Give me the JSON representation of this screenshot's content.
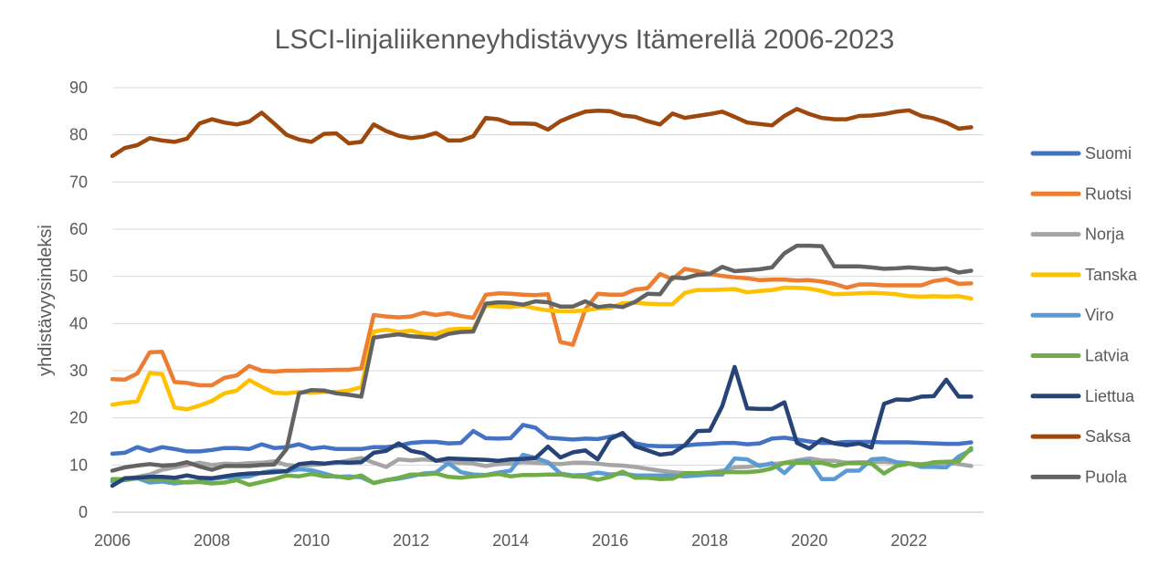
{
  "chart_data": {
    "type": "line",
    "title": "LSCI-linjaliikenneyhdistävyys Itämerellä 2006-2023",
    "xlabel": "",
    "ylabel": "yhdistävyysindeksi",
    "xlim": [
      2006,
      2023.5
    ],
    "ylim": [
      0,
      90
    ],
    "x_ticks": [
      2006,
      2008,
      2010,
      2012,
      2014,
      2016,
      2018,
      2020,
      2022
    ],
    "y_ticks": [
      0,
      10,
      20,
      30,
      40,
      50,
      60,
      70,
      80,
      90
    ],
    "grid": "horizontal",
    "legend_position": "right",
    "x_start": 2006,
    "x_step": 0.25,
    "series": [
      {
        "name": "Suomi",
        "color": "#4472C4",
        "values": [
          12.4,
          12.6,
          13.8,
          13.0,
          13.8,
          13.4,
          12.9,
          12.9,
          13.2,
          13.6,
          13.6,
          13.4,
          14.4,
          13.6,
          13.8,
          14.4,
          13.5,
          13.8,
          13.4,
          13.4,
          13.4,
          13.8,
          13.8,
          14.1,
          14.7,
          14.9,
          14.9,
          14.6,
          14.7,
          17.2,
          15.7,
          15.6,
          15.7,
          18.5,
          17.9,
          15.8,
          15.6,
          15.4,
          15.6,
          15.5,
          16.0,
          16.5,
          14.6,
          14.1,
          14.0,
          14.0,
          14.1,
          14.4,
          14.5,
          14.7,
          14.7,
          14.4,
          14.6,
          15.6,
          15.8,
          15.4,
          15.0,
          14.7,
          14.7,
          14.9,
          14.9,
          14.9,
          14.8,
          14.8,
          14.8,
          14.7,
          14.6,
          14.5,
          14.5,
          14.8
        ]
      },
      {
        "name": "Ruotsi",
        "color": "#ED7D31",
        "values": [
          28.2,
          28.1,
          29.4,
          33.9,
          34.0,
          27.6,
          27.4,
          26.9,
          26.9,
          28.5,
          29.0,
          31.0,
          30.0,
          29.8,
          30.0,
          30.0,
          30.1,
          30.1,
          30.2,
          30.2,
          30.5,
          41.8,
          41.5,
          41.3,
          41.5,
          42.3,
          41.8,
          42.2,
          41.6,
          41.2,
          46.1,
          46.4,
          46.3,
          46.1,
          46.0,
          46.2,
          36.1,
          35.5,
          43.0,
          46.3,
          46.1,
          46.1,
          47.2,
          47.5,
          50.5,
          49.4,
          51.6,
          51.1,
          50.5,
          50.1,
          49.8,
          49.6,
          49.2,
          49.3,
          49.3,
          49.1,
          49.2,
          48.9,
          48.4,
          47.6,
          48.3,
          48.3,
          48.1,
          48.1,
          48.1,
          48.1,
          49.0,
          49.4,
          48.4,
          48.5
        ]
      },
      {
        "name": "Norja",
        "color": "#A5A5A5",
        "values": [
          6.5,
          7.0,
          7.5,
          8.0,
          9.0,
          9.5,
          10.0,
          10.5,
          10.0,
          10.3,
          10.2,
          10.4,
          10.5,
          10.8,
          10.0,
          9.8,
          10.0,
          10.2,
          10.5,
          11.0,
          11.5,
          10.5,
          9.6,
          11.2,
          11.0,
          11.2,
          11.0,
          10.6,
          10.5,
          10.3,
          9.8,
          10.2,
          10.3,
          10.6,
          10.5,
          10.3,
          10.2,
          10.5,
          10.5,
          10.3,
          10.0,
          9.9,
          9.6,
          9.2,
          8.8,
          8.5,
          8.3,
          8.2,
          8.5,
          8.8,
          9.5,
          9.6,
          10.0,
          10.2,
          10.5,
          11.0,
          11.4,
          11.0,
          10.9,
          10.5,
          10.6,
          10.6,
          10.7,
          10.5,
          10.3,
          10.2,
          10.4,
          10.5,
          10.2,
          9.8
        ]
      },
      {
        "name": "Tanska",
        "color": "#FFC000",
        "values": [
          22.8,
          23.2,
          23.5,
          29.5,
          29.3,
          22.2,
          21.8,
          22.6,
          23.6,
          25.2,
          25.8,
          28.0,
          26.6,
          25.3,
          25.2,
          25.5,
          25.3,
          25.5,
          25.5,
          25.8,
          26.5,
          38.3,
          38.7,
          38.2,
          38.5,
          37.8,
          37.8,
          38.7,
          38.9,
          38.8,
          43.8,
          43.6,
          43.5,
          43.8,
          43.2,
          42.8,
          42.6,
          42.6,
          42.8,
          43.2,
          43.3,
          44.3,
          44.4,
          44.2,
          44.1,
          44.1,
          46.5,
          47.1,
          47.1,
          47.2,
          47.3,
          46.6,
          46.9,
          47.1,
          47.6,
          47.6,
          47.4,
          46.9,
          46.2,
          46.3,
          46.4,
          46.5,
          46.4,
          46.2,
          45.8,
          45.7,
          45.8,
          45.7,
          45.8,
          45.3
        ]
      },
      {
        "name": "Viro",
        "color": "#5B9BD5",
        "values": [
          6.5,
          6.8,
          7.2,
          6.3,
          6.5,
          6.1,
          6.4,
          6.5,
          7.0,
          7.4,
          7.4,
          7.6,
          8.4,
          8.8,
          8.7,
          9.1,
          8.9,
          8.2,
          7.5,
          7.6,
          7.4,
          6.2,
          6.8,
          7.1,
          7.6,
          8.2,
          8.4,
          10.4,
          8.5,
          8.0,
          7.9,
          8.4,
          8.8,
          12.2,
          11.5,
          10.6,
          8.2,
          7.8,
          7.9,
          8.4,
          8.0,
          8.2,
          7.8,
          7.8,
          7.8,
          7.8,
          7.6,
          7.8,
          8.0,
          8.0,
          11.4,
          11.2,
          9.8,
          10.4,
          8.3,
          10.8,
          10.9,
          7.0,
          7.0,
          8.8,
          8.8,
          11.2,
          11.4,
          10.6,
          10.4,
          9.6,
          9.6,
          9.5,
          11.8,
          13.2
        ]
      },
      {
        "name": "Latvia",
        "color": "#70AD47",
        "values": [
          7.0,
          7.0,
          7.2,
          7.0,
          6.9,
          6.6,
          6.3,
          6.4,
          6.1,
          6.3,
          6.8,
          5.8,
          6.4,
          7.0,
          7.8,
          7.6,
          8.1,
          7.6,
          7.6,
          7.2,
          7.8,
          6.2,
          6.8,
          7.3,
          8.0,
          8.0,
          8.2,
          7.5,
          7.3,
          7.6,
          7.8,
          8.1,
          7.6,
          7.9,
          7.9,
          8.0,
          8.0,
          7.6,
          7.5,
          6.9,
          7.5,
          8.6,
          7.3,
          7.3,
          7.0,
          7.1,
          8.3,
          8.3,
          8.4,
          8.5,
          8.5,
          8.5,
          8.7,
          9.3,
          10.5,
          10.5,
          10.5,
          10.5,
          9.8,
          10.4,
          10.4,
          10.3,
          8.2,
          9.8,
          10.3,
          10.0,
          10.6,
          10.7,
          10.8,
          13.6
        ]
      },
      {
        "name": "Liettua",
        "color": "#264478",
        "values": [
          5.6,
          7.2,
          7.3,
          7.5,
          7.5,
          7.3,
          7.8,
          7.3,
          7.2,
          7.6,
          8.0,
          8.2,
          8.3,
          8.5,
          8.7,
          10.2,
          10.5,
          10.3,
          10.6,
          10.5,
          10.6,
          12.6,
          13.0,
          14.6,
          13.0,
          12.5,
          10.9,
          11.4,
          11.3,
          11.2,
          11.1,
          10.9,
          11.2,
          11.3,
          11.5,
          13.9,
          11.6,
          12.7,
          13.1,
          11.2,
          15.5,
          16.8,
          14.0,
          13.1,
          12.2,
          12.5,
          14.2,
          17.2,
          17.3,
          22.5,
          30.8,
          22.0,
          21.9,
          21.9,
          23.3,
          14.7,
          13.5,
          15.5,
          14.6,
          14.2,
          14.6,
          13.7,
          23.0,
          23.9,
          23.8,
          24.5,
          24.6,
          28.1,
          24.5,
          24.5
        ]
      },
      {
        "name": "Saksa",
        "color": "#9E480E",
        "values": [
          75.5,
          77.2,
          77.8,
          79.3,
          78.8,
          78.5,
          79.2,
          82.4,
          83.3,
          82.6,
          82.2,
          82.8,
          84.7,
          82.4,
          80.0,
          79.0,
          78.5,
          80.2,
          80.3,
          78.2,
          78.5,
          82.2,
          80.8,
          79.8,
          79.3,
          79.6,
          80.4,
          78.8,
          78.8,
          79.7,
          83.6,
          83.3,
          82.4,
          82.4,
          82.3,
          81.1,
          82.9,
          84.0,
          84.9,
          85.1,
          85.0,
          84.1,
          83.8,
          82.9,
          82.2,
          84.5,
          83.6,
          84.0,
          84.4,
          84.9,
          83.8,
          82.6,
          82.3,
          82.0,
          84.0,
          85.5,
          84.4,
          83.6,
          83.3,
          83.3,
          84.0,
          84.1,
          84.4,
          84.9,
          85.2,
          84.0,
          83.5,
          82.6,
          81.3,
          81.6
        ]
      },
      {
        "name": "Puola",
        "color": "#636363",
        "values": [
          8.8,
          9.5,
          9.9,
          10.2,
          9.9,
          10.0,
          10.6,
          9.7,
          9.0,
          9.8,
          9.8,
          9.8,
          10.0,
          10.1,
          13.4,
          25.2,
          25.9,
          25.8,
          25.2,
          24.9,
          24.5,
          37.0,
          37.4,
          37.7,
          37.3,
          37.1,
          36.8,
          37.8,
          38.2,
          38.3,
          44.2,
          44.5,
          44.4,
          44.0,
          44.7,
          44.5,
          43.6,
          43.6,
          44.7,
          43.5,
          43.8,
          43.5,
          44.6,
          46.3,
          46.2,
          49.8,
          49.6,
          50.3,
          50.5,
          52.0,
          51.1,
          51.3,
          51.5,
          51.9,
          54.9,
          56.5,
          56.5,
          56.4,
          52.1,
          52.1,
          52.1,
          51.9,
          51.6,
          51.7,
          51.9,
          51.7,
          51.5,
          51.7,
          50.8,
          51.2
        ]
      }
    ]
  }
}
